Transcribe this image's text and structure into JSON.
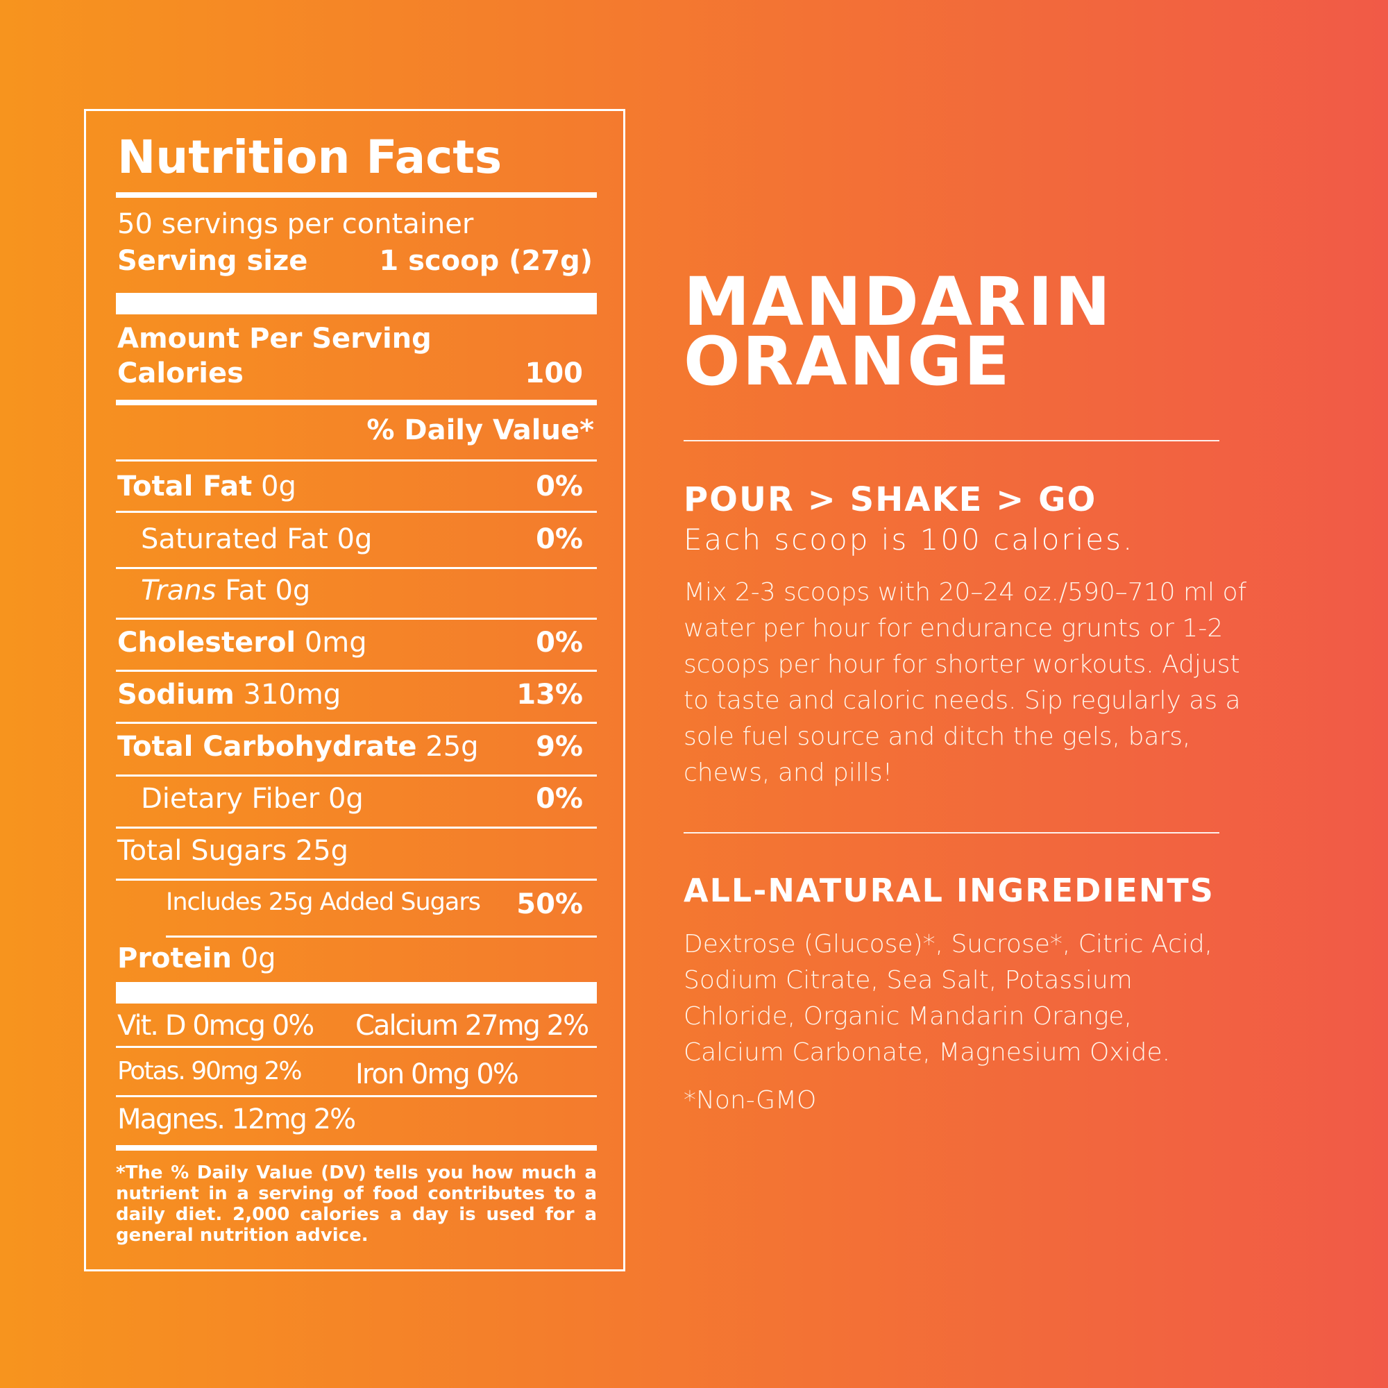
{
  "nutrition": {
    "title": "Nutrition Facts",
    "servings": "50 servings per container",
    "serving_size_label": "Serving size",
    "serving_size_value": "1 scoop (27g)",
    "amount_per_serving": "Amount Per Serving",
    "calories_label": "Calories",
    "calories_value": "100",
    "daily_value_header": "% Daily Value*",
    "rows": [
      {
        "label": "Total Fat",
        "amount": "0g",
        "dv": "0%"
      },
      {
        "label": "Saturated Fat",
        "amount": "0g",
        "dv": "0%"
      },
      {
        "label": "Trans",
        "label_suffix": "Fat",
        "amount": "0g",
        "dv": ""
      },
      {
        "label": "Cholesterol",
        "amount": "0mg",
        "dv": "0%"
      },
      {
        "label": "Sodium",
        "amount": "310mg",
        "dv": "13%"
      },
      {
        "label": "Total Carbohydrate",
        "amount": "25g",
        "dv": "9%"
      },
      {
        "label": "Dietary Fiber",
        "amount": "0g",
        "dv": "0%"
      },
      {
        "label": "Total Sugars",
        "amount": "25g",
        "dv": ""
      },
      {
        "label": "Includes 25g Added Sugars",
        "amount": "",
        "dv": "50%"
      },
      {
        "label": "Protein",
        "amount": "0g",
        "dv": ""
      }
    ],
    "vitamins": {
      "vit_d": "Vit. D 0mcg 0%",
      "calcium": "Calcium 27mg 2%",
      "potas": "Potas.  90mg 2%",
      "iron": "Iron 0mg 0%",
      "magnes": "Magnes. 12mg 2%"
    },
    "footnote": "*The % Daily Value (DV) tells you how much a nutrient in a serving of food contributes to a daily diet. 2,000 calories a day is used for a general nutrition advice."
  },
  "product": {
    "name_line1": "MANDARIN",
    "name_line2": "ORANGE",
    "directions_heading": "POUR > SHAKE > GO",
    "directions_subheading": "Each scoop is 100 calories.",
    "directions_text": "Mix 2-3 scoops with 20–24 oz./590–710 ml of water per hour for endurance grunts or 1-2 scoops per hour for shorter workouts. Adjust to taste and caloric needs. Sip regularly as a sole fuel source and ditch the gels, bars, chews, and pills!",
    "ingredients_heading": "ALL-NATURAL INGREDIENTS",
    "ingredients_text": "Dextrose (Glucose)*, Sucrose*, Citric Acid, Sodium Citrate, Sea Salt, Potassium Chloride, Organic Mandarin Orange, Calcium Carbonate, Magnesium Oxide.",
    "non_gmo_note": "*Non-GMO"
  }
}
